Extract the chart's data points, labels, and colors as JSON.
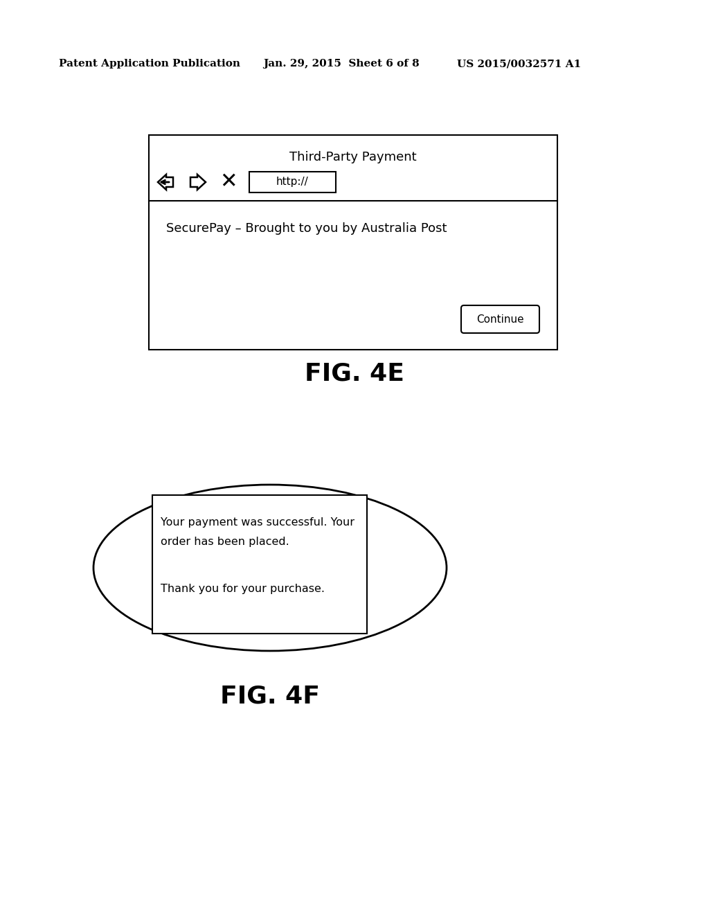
{
  "bg_color": "#ffffff",
  "header_text": "Patent Application Publication",
  "header_date": "Jan. 29, 2015  Sheet 6 of 8",
  "header_patent": "US 2015/0032571 A1",
  "fig4e_title": "Third-Party Payment",
  "fig4e_url": "http://",
  "fig4e_body_text": "SecurePay – Brought to you by Australia Post",
  "fig4e_button": "Continue",
  "fig4e_label": "FIG. 4E",
  "fig4f_line1": "Your payment was successful. Your",
  "fig4f_line2": "order has been placed.",
  "fig4f_line3": "Thank you for your purchase.",
  "fig4f_label": "FIG. 4F",
  "text_color": "#000000"
}
